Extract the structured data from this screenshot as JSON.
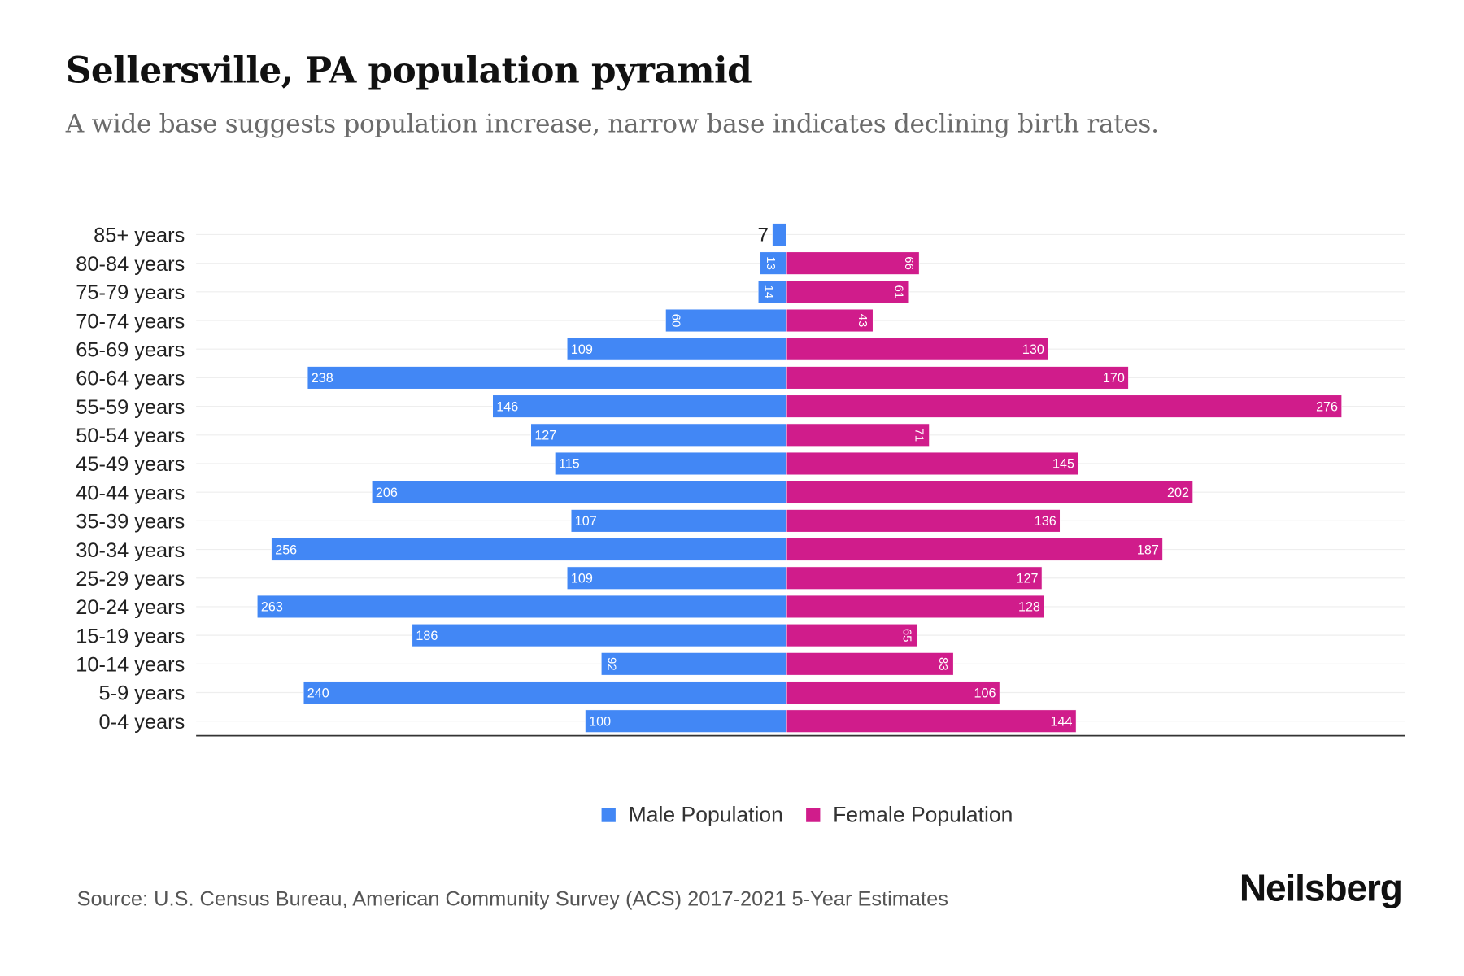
{
  "title": "Sellersville, PA population pyramid",
  "subtitle": "A wide base suggests population increase, narrow base indicates declining birth rates.",
  "source": "Source: U.S. Census Bureau, American Community Survey (ACS) 2017-2021 5-Year Estimates",
  "logo": "Neilsberg",
  "chart_data": {
    "type": "bar",
    "orientation": "horizontal-pyramid",
    "categories": [
      "85+ years",
      "80-84 years",
      "75-79 years",
      "70-74 years",
      "65-69 years",
      "60-64 years",
      "55-59 years",
      "50-54 years",
      "45-49 years",
      "40-44 years",
      "35-39 years",
      "30-34 years",
      "25-29 years",
      "20-24 years",
      "15-19 years",
      "10-14 years",
      "5-9 years",
      "0-4 years"
    ],
    "series": [
      {
        "name": "Male Population",
        "color": "#4287f5",
        "values": [
          7,
          13,
          14,
          60,
          109,
          238,
          146,
          127,
          115,
          206,
          107,
          256,
          109,
          263,
          186,
          92,
          240,
          100
        ]
      },
      {
        "name": "Female Population",
        "color": "#d01c8b",
        "values": [
          0,
          66,
          61,
          43,
          130,
          170,
          276,
          71,
          145,
          202,
          136,
          187,
          127,
          128,
          65,
          83,
          106,
          144
        ]
      }
    ],
    "xlim": [
      -294,
      307
    ],
    "grid": true,
    "legend": "bottom-center"
  }
}
